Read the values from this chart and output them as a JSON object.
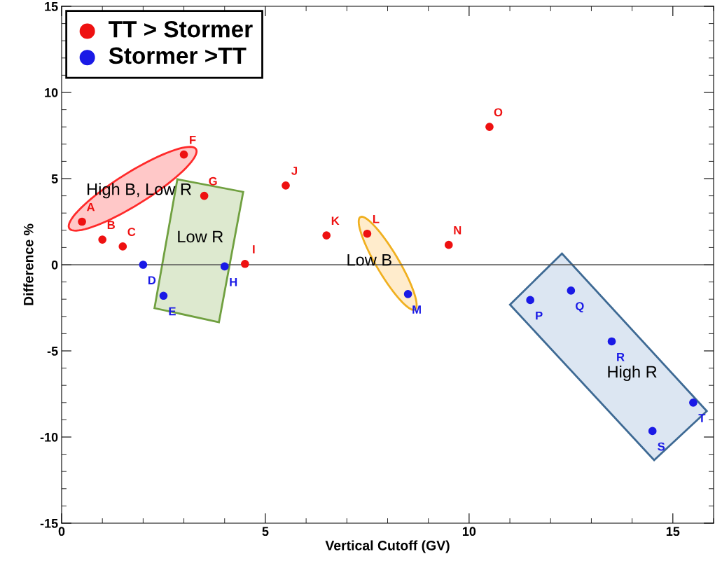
{
  "chart_data": {
    "type": "scatter",
    "xlabel": "Vertical Cutoff (GV)",
    "ylabel": "Difference %",
    "xlim": [
      0,
      16
    ],
    "xticks": [
      0,
      5,
      10,
      15
    ],
    "ylim": [
      -15,
      15
    ],
    "yticks": [
      -15,
      -10,
      -5,
      0,
      5,
      10,
      15
    ],
    "marker": "circle",
    "legend": "top left",
    "grid": false,
    "series": [
      {
        "name": "TT > Stormer",
        "color": "#ee1111",
        "x": [
          0.5,
          1.0,
          1.5,
          3.0,
          3.5,
          4.5,
          5.5,
          6.5,
          7.5,
          9.5,
          10.5
        ],
        "values": [
          2.5,
          1.46,
          1.06,
          6.4,
          4.0,
          0.05,
          4.6,
          1.7,
          1.8,
          1.15,
          8.0
        ]
      },
      {
        "name": "Stormer >TT",
        "color": "#1a1ae6",
        "x": [
          2.0,
          2.5,
          4.0,
          8.5,
          11.5,
          12.5,
          13.5,
          14.5,
          15.5
        ],
        "values": [
          0,
          -1.8,
          -0.1,
          -1.7,
          -2.05,
          -1.5,
          -4.45,
          -9.65,
          -8.0
        ]
      }
    ],
    "ref_lines": [
      {
        "axis": "y",
        "value": 0,
        "color": "#555555"
      }
    ],
    "annotations": [
      {
        "text": "A",
        "x": 0.5,
        "y": 2.5
      },
      {
        "text": "B",
        "x": 1.0,
        "y": 1.46
      },
      {
        "text": "C",
        "x": 1.5,
        "y": 1.06
      },
      {
        "text": "F",
        "x": 3.0,
        "y": 6.4
      },
      {
        "text": "G",
        "x": 3.5,
        "y": 4.0
      },
      {
        "text": "I",
        "x": 4.5,
        "y": 0.05
      },
      {
        "text": "J",
        "x": 5.5,
        "y": 4.6
      },
      {
        "text": "K",
        "x": 6.5,
        "y": 1.7
      },
      {
        "text": "L",
        "x": 7.5,
        "y": 1.8
      },
      {
        "text": "N",
        "x": 9.5,
        "y": 1.15
      },
      {
        "text": "O",
        "x": 10.5,
        "y": 8.0
      },
      {
        "text": "D",
        "x": 2.0,
        "y": 0
      },
      {
        "text": "E",
        "x": 2.5,
        "y": -1.8
      },
      {
        "text": "H",
        "x": 4.0,
        "y": -0.1
      },
      {
        "text": "M",
        "x": 8.5,
        "y": -1.7
      },
      {
        "text": "P",
        "x": 11.5,
        "y": -2.05
      },
      {
        "text": "Q",
        "x": 12.5,
        "y": -1.5
      },
      {
        "text": "R",
        "x": 13.5,
        "y": -4.45
      },
      {
        "text": "S",
        "x": 14.5,
        "y": -9.65
      },
      {
        "text": "T",
        "x": 15.5,
        "y": -8.0
      },
      "High B, Low R",
      "Low R",
      "Low B",
      "High R"
    ]
  }
}
